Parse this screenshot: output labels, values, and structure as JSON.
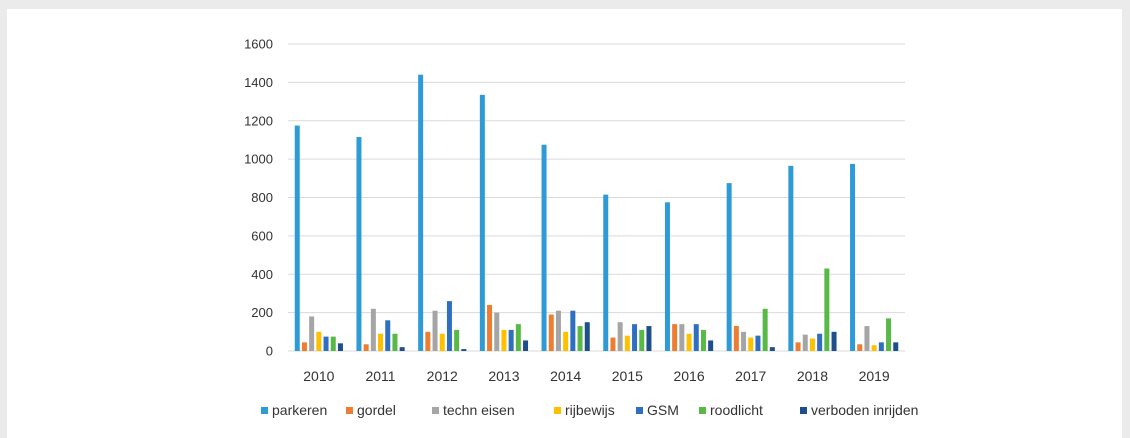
{
  "chart_data": {
    "type": "bar",
    "categories": [
      "2010",
      "2011",
      "2012",
      "2013",
      "2014",
      "2015",
      "2016",
      "2017",
      "2018",
      "2019"
    ],
    "series": [
      {
        "name": "parkeren",
        "color": "#2e9bd6",
        "values": [
          1175,
          1115,
          1440,
          1335,
          1075,
          815,
          775,
          875,
          965,
          975
        ]
      },
      {
        "name": "gordel",
        "color": "#ed7d31",
        "values": [
          45,
          35,
          100,
          240,
          190,
          70,
          140,
          130,
          45,
          35
        ]
      },
      {
        "name": "techn eisen",
        "color": "#a5a5a5",
        "values": [
          180,
          220,
          210,
          200,
          210,
          150,
          140,
          100,
          85,
          130
        ]
      },
      {
        "name": "rijbewijs",
        "color": "#ffc000",
        "values": [
          100,
          90,
          90,
          110,
          100,
          80,
          90,
          70,
          65,
          30
        ]
      },
      {
        "name": "GSM",
        "color": "#2f6fc0",
        "values": [
          75,
          160,
          260,
          110,
          210,
          140,
          140,
          80,
          90,
          45
        ]
      },
      {
        "name": "roodlicht",
        "color": "#58b947",
        "values": [
          75,
          90,
          110,
          140,
          130,
          110,
          110,
          220,
          430,
          170
        ]
      },
      {
        "name": "verboden inrijden",
        "color": "#1f4e8c",
        "values": [
          40,
          20,
          10,
          55,
          150,
          130,
          55,
          20,
          100,
          45
        ]
      }
    ],
    "ylim": [
      0,
      1600
    ],
    "yticks": [
      0,
      200,
      400,
      600,
      800,
      1000,
      1200,
      1400,
      1600
    ],
    "grid": true,
    "legend_position": "bottom",
    "gridColor": "#d9d9d9"
  }
}
